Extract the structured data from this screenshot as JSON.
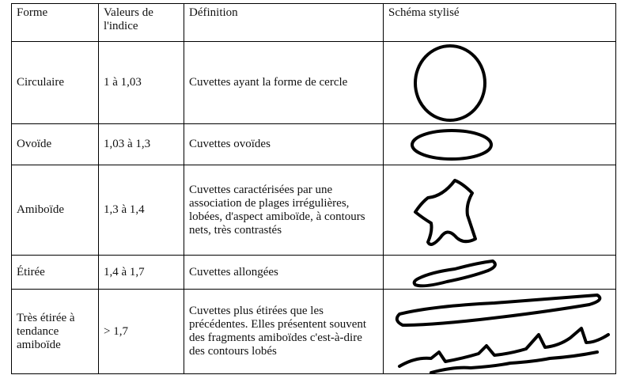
{
  "table": {
    "header": [
      "Forme",
      "Valeurs de l'indice",
      "Définition",
      "Schéma stylisé"
    ],
    "rows": [
      [
        "Circulaire",
        "1 à 1,03",
        "Cuvettes ayant la forme de cercle"
      ],
      [
        "Ovoïde",
        "1,03 à 1,3",
        "Cuvettes ovoïdes"
      ],
      [
        "Amiboïde",
        "1,3 à 1,4",
        "Cuvettes caractérisées par une association de plages irrégulières, lobées, d'aspect amiboïde, à contours nets, très contrastés"
      ],
      [
        "Étirée",
        "1,4 à 1,7",
        "Cuvettes allongées"
      ],
      [
        "Très étirée à tendance amiboïde",
        "> 1,7",
        "Cuvettes plus étirées que les précédentes. Elles présentent souvent des fragments amiboïdes c'est-à-dire des contours lobés"
      ]
    ]
  }
}
